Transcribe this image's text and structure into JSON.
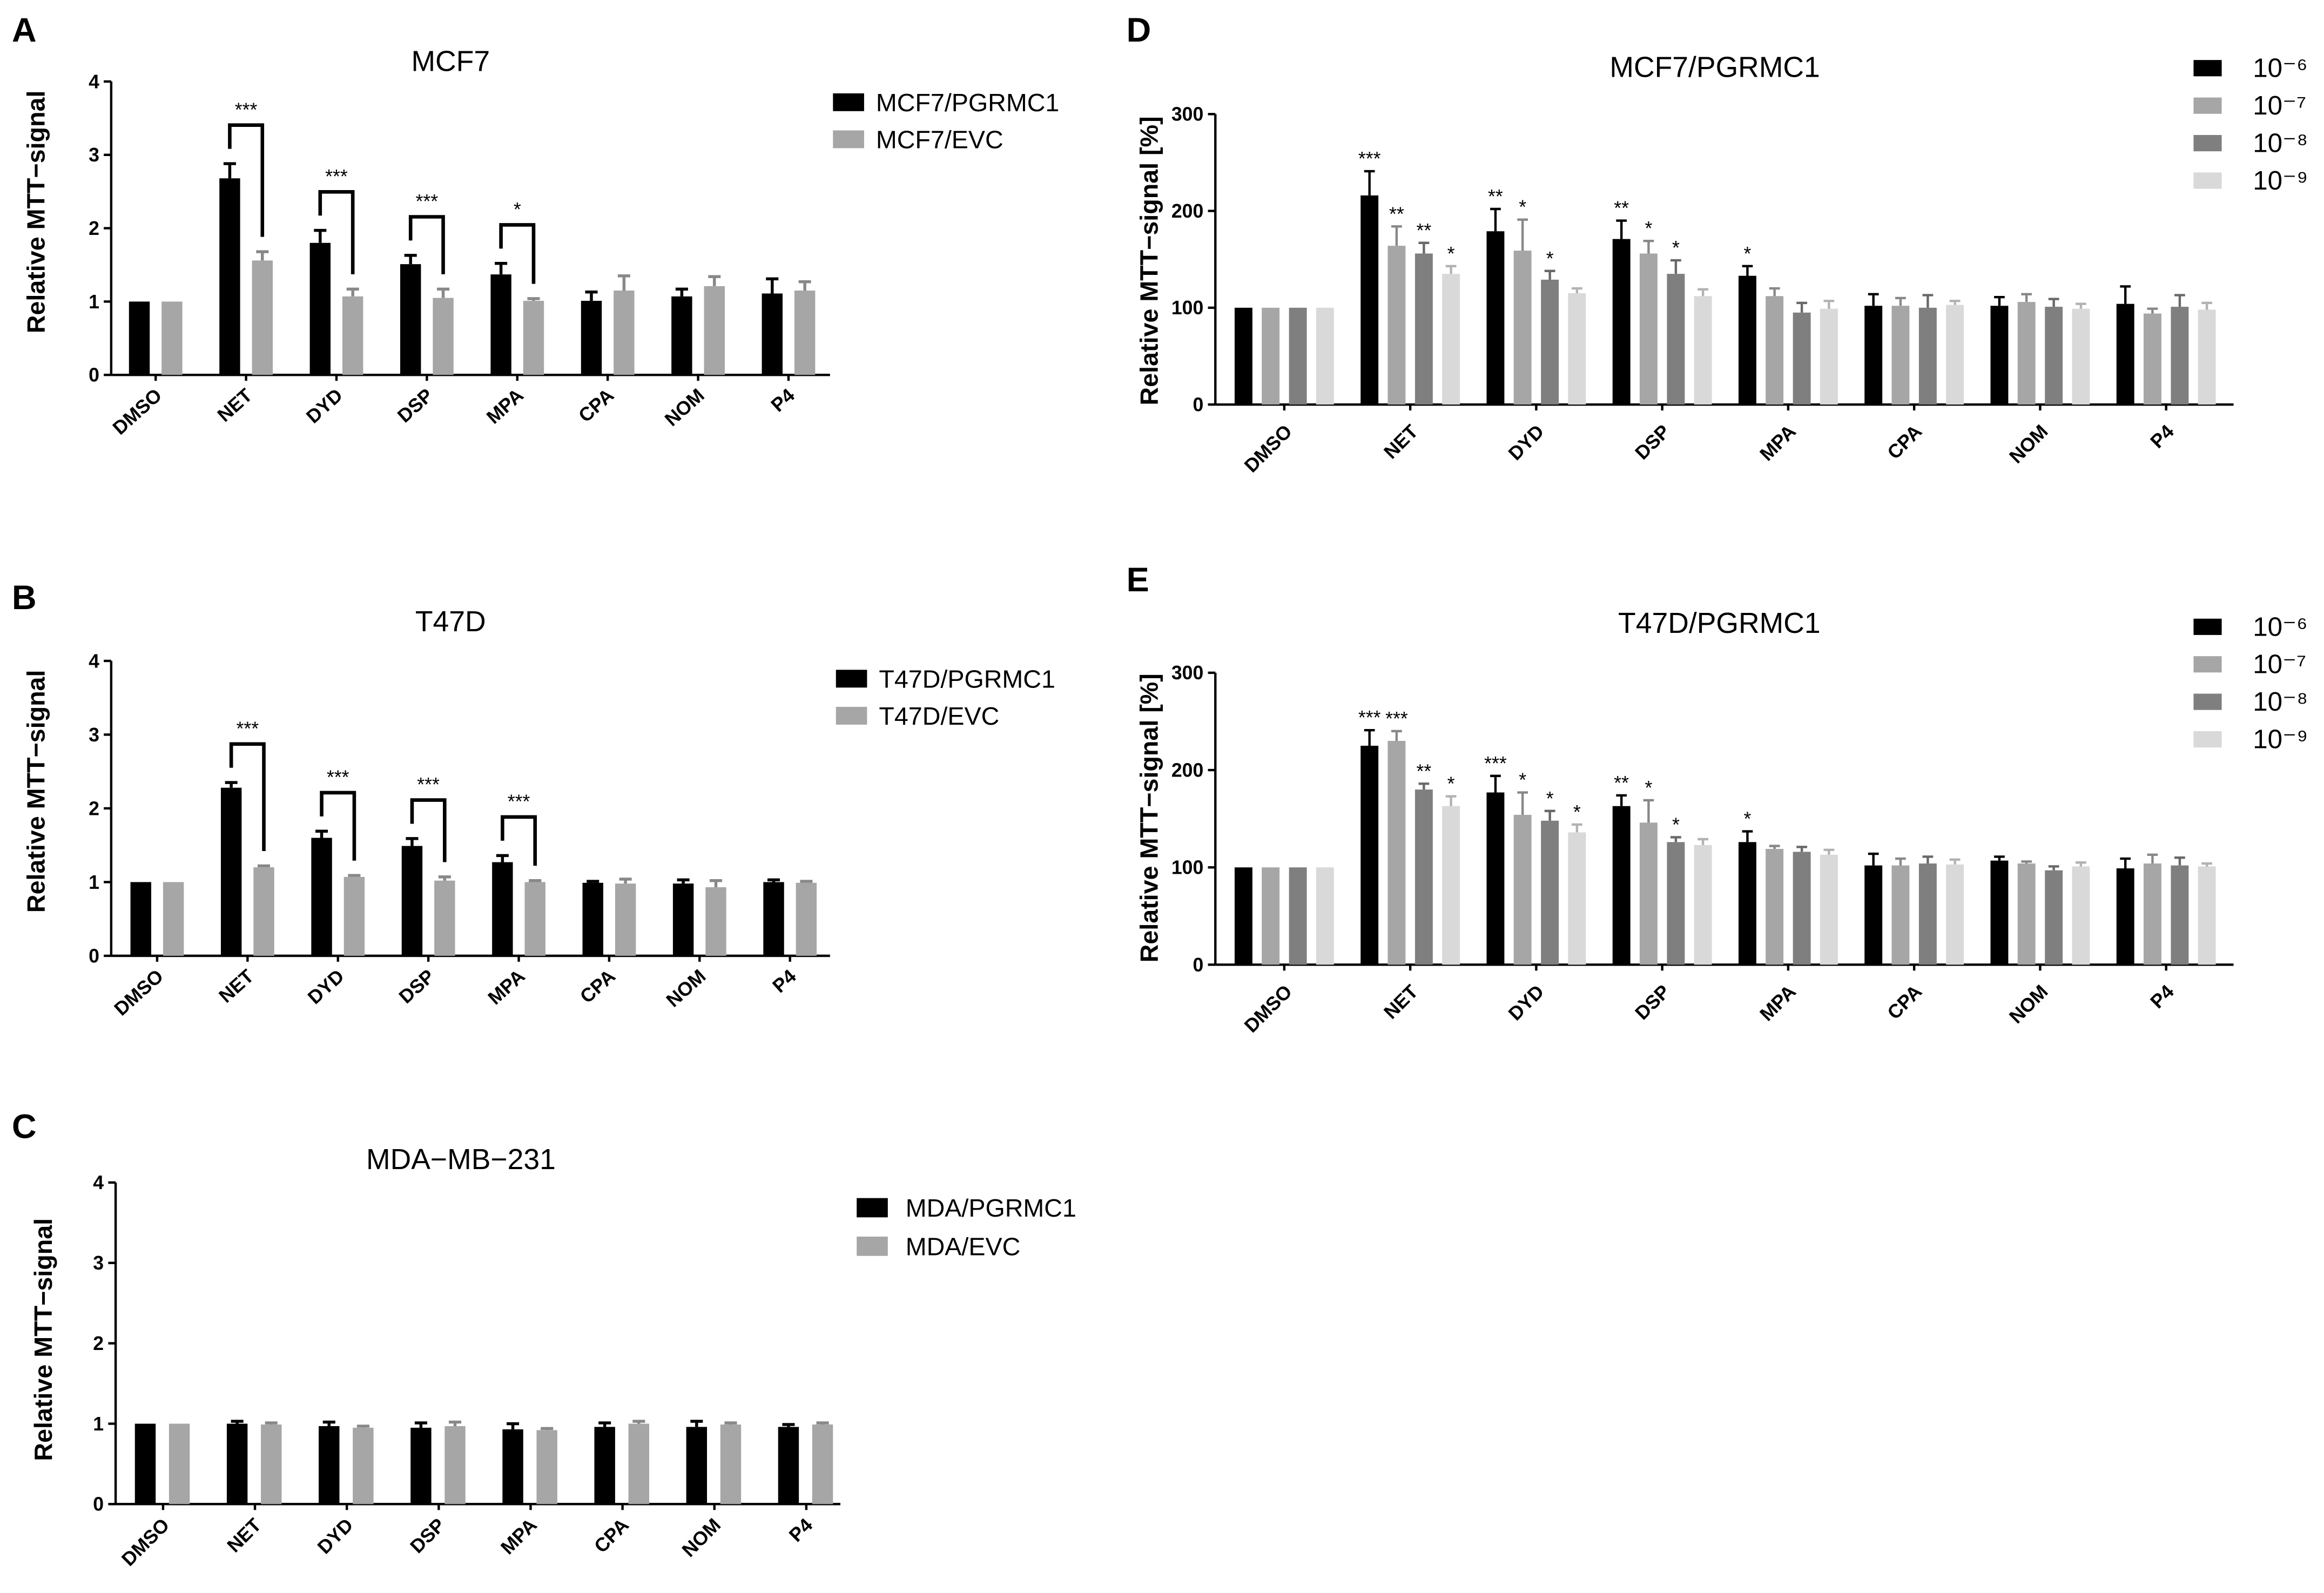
{
  "chart_data": [
    {
      "panel": "A",
      "type": "bar",
      "title": "MCF7",
      "xlabel": "",
      "ylabel": "Relative MTT−signal",
      "ylim": [
        0,
        4
      ],
      "yticks": [
        0,
        1,
        2,
        3,
        4
      ],
      "categories": [
        "DMSO",
        "NET",
        "DYD",
        "DSP",
        "MPA",
        "CPA",
        "NOM",
        "P4"
      ],
      "legend": "right",
      "series": [
        {
          "name": "MCF7/PGRMC1",
          "color": "#000000",
          "values": [
            1.0,
            2.68,
            1.8,
            1.51,
            1.37,
            1.01,
            1.07,
            1.11
          ],
          "errors": [
            0,
            0.2,
            0.17,
            0.12,
            0.15,
            0.12,
            0.1,
            0.2
          ]
        },
        {
          "name": "MCF7/EVC",
          "color": "#a6a6a6",
          "values": [
            1.0,
            1.56,
            1.07,
            1.05,
            1.01,
            1.15,
            1.21,
            1.15
          ],
          "errors": [
            0,
            0.12,
            0.1,
            0.12,
            0.03,
            0.2,
            0.13,
            0.12
          ]
        }
      ],
      "bracket_labels": [
        "",
        "***",
        "***",
        "***",
        "*",
        "",
        "",
        ""
      ]
    },
    {
      "panel": "B",
      "type": "bar",
      "title": "T47D",
      "xlabel": "",
      "ylabel": "Relative MTT−signal",
      "ylim": [
        0,
        4
      ],
      "yticks": [
        0,
        1,
        2,
        3,
        4
      ],
      "categories": [
        "DMSO",
        "NET",
        "DYD",
        "DSP",
        "MPA",
        "CPA",
        "NOM",
        "P4"
      ],
      "legend": "right",
      "series": [
        {
          "name": "T47D/PGRMC1",
          "color": "#000000",
          "values": [
            1.0,
            2.28,
            1.6,
            1.49,
            1.27,
            0.99,
            0.98,
            1.0
          ],
          "errors": [
            0,
            0.07,
            0.09,
            0.1,
            0.09,
            0.02,
            0.05,
            0.03
          ]
        },
        {
          "name": "T47D/EVC",
          "color": "#a6a6a6",
          "values": [
            1.0,
            1.2,
            1.07,
            1.02,
            1.0,
            0.98,
            0.93,
            0.99
          ],
          "errors": [
            0,
            0.02,
            0.02,
            0.05,
            0.02,
            0.06,
            0.09,
            0.02
          ]
        }
      ],
      "bracket_labels": [
        "",
        "***",
        "***",
        "***",
        "***",
        "",
        "",
        ""
      ]
    },
    {
      "panel": "C",
      "type": "bar",
      "title": "MDA−MB−231",
      "xlabel": "",
      "ylabel": "Relative MTT−signal",
      "ylim": [
        0,
        4
      ],
      "yticks": [
        0,
        1,
        2,
        3,
        4
      ],
      "categories": [
        "DMSO",
        "NET",
        "DYD",
        "DSP",
        "MPA",
        "CPA",
        "NOM",
        "P4"
      ],
      "legend": "right",
      "series": [
        {
          "name": "MDA/PGRMC1",
          "color": "#000000",
          "values": [
            1.0,
            1.0,
            0.97,
            0.95,
            0.93,
            0.96,
            0.96,
            0.96
          ],
          "errors": [
            0,
            0.03,
            0.05,
            0.06,
            0.07,
            0.05,
            0.07,
            0.03
          ]
        },
        {
          "name": "MDA/EVC",
          "color": "#a6a6a6",
          "values": [
            1.0,
            0.99,
            0.95,
            0.97,
            0.92,
            1.0,
            0.99,
            0.99
          ],
          "errors": [
            0,
            0.02,
            0.02,
            0.05,
            0.02,
            0.03,
            0.02,
            0.02
          ]
        }
      ],
      "bracket_labels": [
        "",
        "",
        "",
        "",
        "",
        "",
        "",
        ""
      ]
    },
    {
      "panel": "D",
      "type": "bar",
      "title": "MCF7/PGRMC1",
      "xlabel": "",
      "ylabel": "Relative MTT−signal [%]",
      "ylim": [
        0,
        300
      ],
      "yticks": [
        0,
        100,
        200,
        300
      ],
      "categories": [
        "DMSO",
        "NET",
        "DYD",
        "DSP",
        "MPA",
        "CPA",
        "NOM",
        "P4"
      ],
      "legend": "top-right",
      "series": [
        {
          "name": "10⁻⁶",
          "color": "#000000",
          "values": [
            100,
            216,
            179,
            171,
            133,
            102,
            102,
            104
          ],
          "errors": [
            0,
            25,
            23,
            19,
            10,
            12,
            9,
            18
          ],
          "stars": [
            "",
            "***",
            "**",
            "**",
            "*",
            "",
            "",
            ""
          ]
        },
        {
          "name": "10⁻⁷",
          "color": "#a6a6a6",
          "values": [
            100,
            164,
            159,
            156,
            112,
            102,
            106,
            94
          ],
          "errors": [
            0,
            20,
            32,
            13,
            8,
            8,
            8,
            5
          ],
          "stars": [
            "",
            "**",
            "*",
            "*",
            "",
            "",
            "",
            ""
          ]
        },
        {
          "name": "10⁻⁸",
          "color": "#7f7f7f",
          "values": [
            100,
            156,
            129,
            135,
            95,
            100,
            101,
            101
          ],
          "errors": [
            0,
            11,
            9,
            14,
            10,
            13,
            8,
            12
          ],
          "stars": [
            "",
            "**",
            "*",
            "*",
            "",
            "",
            "",
            ""
          ]
        },
        {
          "name": "10⁻⁹",
          "color": "#d9d9d9",
          "values": [
            100,
            135,
            115,
            112,
            99,
            103,
            99,
            98
          ],
          "errors": [
            0,
            8,
            5,
            7,
            8,
            4,
            5,
            7
          ],
          "stars": [
            "",
            "*",
            "",
            "",
            "",
            "",
            "",
            ""
          ]
        }
      ]
    },
    {
      "panel": "E",
      "type": "bar",
      "title": "T47D/PGRMC1",
      "xlabel": "",
      "ylabel": "Relative MTT−signal [%]",
      "ylim": [
        0,
        300
      ],
      "yticks": [
        0,
        100,
        200,
        300
      ],
      "categories": [
        "DMSO",
        "NET",
        "DYD",
        "DSP",
        "MPA",
        "CPA",
        "NOM",
        "P4"
      ],
      "legend": "top-right",
      "series": [
        {
          "name": "10⁻⁶",
          "color": "#000000",
          "values": [
            100,
            225,
            177,
            163,
            126,
            102,
            107,
            99
          ],
          "errors": [
            0,
            16,
            17,
            11,
            11,
            12,
            4,
            10
          ],
          "stars": [
            "",
            "***",
            "***",
            "**",
            "*",
            "",
            "",
            ""
          ]
        },
        {
          "name": "10⁻⁷",
          "color": "#a6a6a6",
          "values": [
            100,
            230,
            154,
            146,
            119,
            102,
            104,
            104
          ],
          "errors": [
            0,
            10,
            23,
            23,
            3,
            7,
            2,
            9
          ],
          "stars": [
            "",
            "***",
            "*",
            "*",
            "",
            "",
            "",
            ""
          ]
        },
        {
          "name": "10⁻⁸",
          "color": "#7f7f7f",
          "values": [
            100,
            180,
            148,
            126,
            116,
            104,
            97,
            102
          ],
          "errors": [
            0,
            6,
            10,
            5,
            5,
            7,
            4,
            8
          ],
          "stars": [
            "",
            "**",
            "*",
            "*",
            "",
            "",
            "",
            ""
          ]
        },
        {
          "name": "10⁻⁹",
          "color": "#d9d9d9",
          "values": [
            100,
            163,
            136,
            123,
            113,
            103,
            101,
            101
          ],
          "errors": [
            0,
            10,
            8,
            6,
            5,
            5,
            4,
            3
          ],
          "stars": [
            "",
            "*",
            "*",
            "",
            "",
            "",
            "",
            ""
          ]
        }
      ]
    }
  ]
}
